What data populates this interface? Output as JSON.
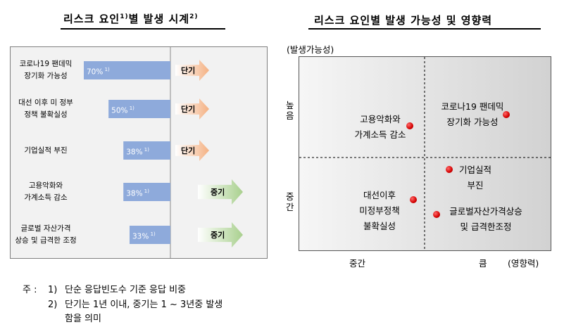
{
  "left": {
    "title": "리스크 요인",
    "title_sup": "1)",
    "title_tail": "별 발생 시계",
    "title_tail_sup": "2)",
    "chart_data": {
      "type": "bar",
      "orientation": "horizontal",
      "categories": [
        "코로나19 팬데믹 장기화 가능성",
        "대선 이후 미 정부 정책 불확실성",
        "기업실적 부진",
        "고용악화와 가계소득 감소",
        "글로벌 자산가격 상승 및 급격한 조정"
      ],
      "category_lines": [
        [
          "코로나19 팬데믹",
          "장기화 가능성"
        ],
        [
          "대선 이후 미 정부",
          "정책 불확실성"
        ],
        [
          "기업실적 부진"
        ],
        [
          "고용악화와",
          "가계소득 감소"
        ],
        [
          "글로벌 자산가격",
          "상승 및 급격한 조정"
        ]
      ],
      "values": [
        70,
        50,
        38,
        38,
        33
      ],
      "value_labels": [
        "70%",
        "50%",
        "38%",
        "38%",
        "33%"
      ],
      "value_sup": "1)",
      "bar_color": "#8eaadb",
      "horizon": [
        "단기",
        "단기",
        "단기",
        "중기",
        "중기"
      ],
      "short_color": "#f4b183",
      "mid_color": "#a9d08e"
    }
  },
  "right": {
    "title": "리스크 요인별 발생 가능성 및 영향력",
    "ylabel": "(발생가능성)",
    "xlabel": "(영향력)",
    "y_levels": [
      "높음",
      "중간"
    ],
    "x_levels": [
      "중간",
      "큼"
    ],
    "chart_data": {
      "type": "scatter",
      "x_categories": [
        "중간",
        "큼"
      ],
      "y_categories": [
        "중간",
        "높음"
      ],
      "points": [
        {
          "lines": [
            "고용악화와",
            "가계소득 감소"
          ],
          "x": "중간",
          "y": "높음"
        },
        {
          "lines": [
            "코로나19 팬데믹",
            "장기화 가능성"
          ],
          "x": "큼",
          "y": "높음"
        },
        {
          "lines": [
            "대선이후",
            "미정부정책",
            "불확실성"
          ],
          "x": "중간",
          "y": "중간"
        },
        {
          "lines": [
            "기업실적",
            "부진"
          ],
          "x": "큼",
          "y": "중간"
        },
        {
          "lines": [
            "글로벌자산가격상승",
            "및 급격한조정"
          ],
          "x": "큼",
          "y": "중간"
        }
      ]
    }
  },
  "notes": {
    "prefix": "주 :",
    "n1_num": "1)",
    "n1_text": "단순 응답빈도수 기준 응답 비중",
    "n2_num": "2)",
    "n2_text": "단기는 1년 이내, 중기는 1 ~ 3년중 발생",
    "n2_cont": "함을 의미"
  }
}
